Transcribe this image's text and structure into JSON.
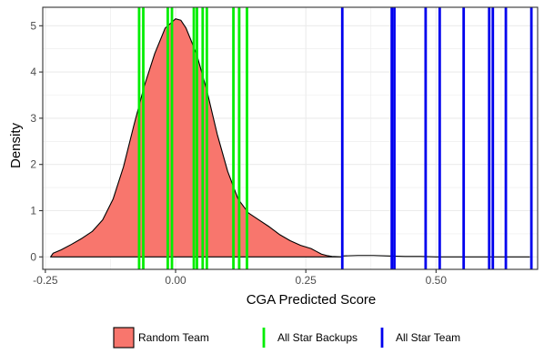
{
  "chart_data": {
    "type": "density",
    "xlabel": "CGA Predicted Score",
    "ylabel": "Density",
    "xlim": [
      -0.255,
      0.695
    ],
    "ylim": [
      -0.27,
      5.4
    ],
    "x_ticks": [
      {
        "value": -0.25,
        "label": "-0.25"
      },
      {
        "value": 0.0,
        "label": "0.00"
      },
      {
        "value": 0.25,
        "label": "0.25"
      },
      {
        "value": 0.5,
        "label": "0.50"
      }
    ],
    "y_ticks": [
      {
        "value": 0,
        "label": "0"
      },
      {
        "value": 1,
        "label": "1"
      },
      {
        "value": 2,
        "label": "2"
      },
      {
        "value": 3,
        "label": "3"
      },
      {
        "value": 4,
        "label": "4"
      },
      {
        "value": 5,
        "label": "5"
      }
    ],
    "grid": true,
    "legend_position": "bottom",
    "density_series": {
      "name": "Random Team",
      "color": "#F8766D",
      "points": [
        [
          -0.24,
          0.0
        ],
        [
          -0.235,
          0.08
        ],
        [
          -0.22,
          0.15
        ],
        [
          -0.2,
          0.27
        ],
        [
          -0.18,
          0.4
        ],
        [
          -0.16,
          0.55
        ],
        [
          -0.14,
          0.8
        ],
        [
          -0.12,
          1.25
        ],
        [
          -0.1,
          1.95
        ],
        [
          -0.08,
          2.85
        ],
        [
          -0.06,
          3.7
        ],
        [
          -0.04,
          4.4
        ],
        [
          -0.02,
          4.95
        ],
        [
          0.0,
          5.15
        ],
        [
          0.01,
          5.12
        ],
        [
          0.02,
          4.95
        ],
        [
          0.04,
          4.4
        ],
        [
          0.06,
          3.6
        ],
        [
          0.08,
          2.65
        ],
        [
          0.1,
          1.85
        ],
        [
          0.12,
          1.25
        ],
        [
          0.14,
          0.95
        ],
        [
          0.16,
          0.8
        ],
        [
          0.18,
          0.65
        ],
        [
          0.2,
          0.48
        ],
        [
          0.22,
          0.35
        ],
        [
          0.24,
          0.25
        ],
        [
          0.26,
          0.18
        ],
        [
          0.27,
          0.12
        ],
        [
          0.28,
          0.06
        ],
        [
          0.29,
          0.03
        ],
        [
          0.3,
          0.01
        ],
        [
          0.32,
          0.0
        ]
      ]
    },
    "tail_line": {
      "color": "#000000",
      "points": [
        [
          0.32,
          0.02
        ],
        [
          0.35,
          0.03
        ],
        [
          0.38,
          0.03
        ],
        [
          0.41,
          0.02
        ],
        [
          0.44,
          0.01
        ],
        [
          0.47,
          0.01
        ],
        [
          0.5,
          0.0
        ],
        [
          0.6,
          0.0
        ],
        [
          0.68,
          0.0
        ]
      ]
    },
    "vline_series": [
      {
        "name": "All Star Backups",
        "color": "#00EE00",
        "values": [
          -0.07,
          -0.062,
          -0.015,
          -0.007,
          0.035,
          0.041,
          0.052,
          0.06,
          0.111,
          0.122,
          0.137
        ]
      },
      {
        "name": "All Star Team",
        "color": "#0000EE",
        "values": [
          0.32,
          0.415,
          0.42,
          0.48,
          0.507,
          0.553,
          0.602,
          0.609,
          0.634,
          0.683
        ]
      }
    ]
  }
}
